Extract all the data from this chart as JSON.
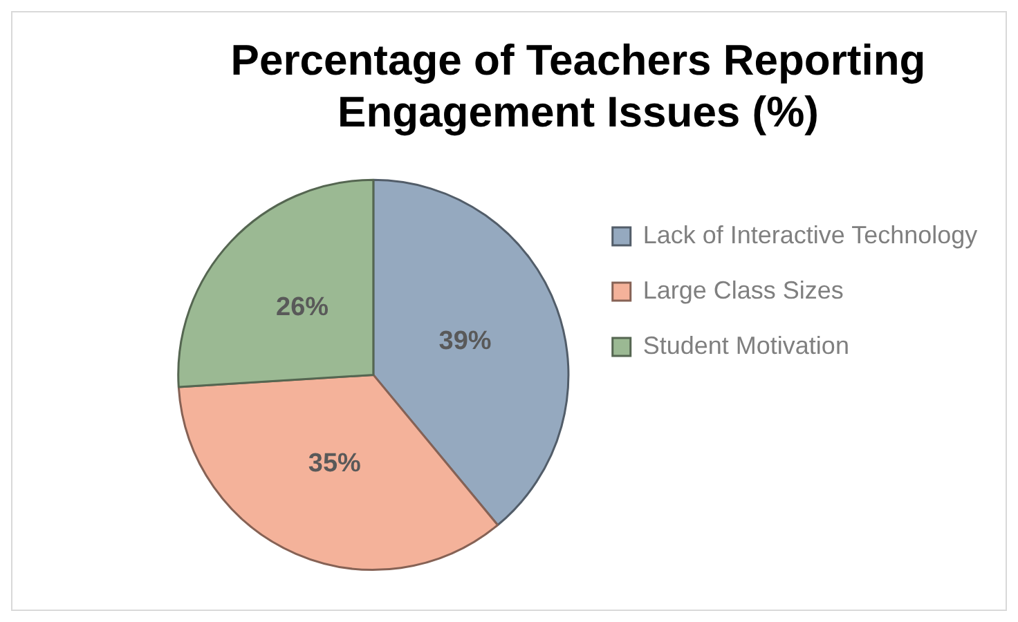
{
  "chart_data": {
    "type": "pie",
    "title": "Percentage of Teachers Reporting Engagement Issues (%)",
    "categories": [
      "Lack of Interactive Technology",
      "Large Class Sizes",
      "Student Motivation"
    ],
    "values": [
      39,
      35,
      26
    ],
    "colors": [
      "#95a9bf",
      "#f4b29a",
      "#9bb993"
    ],
    "value_labels": [
      "39%",
      "35%",
      "26%"
    ],
    "legend": "right"
  }
}
